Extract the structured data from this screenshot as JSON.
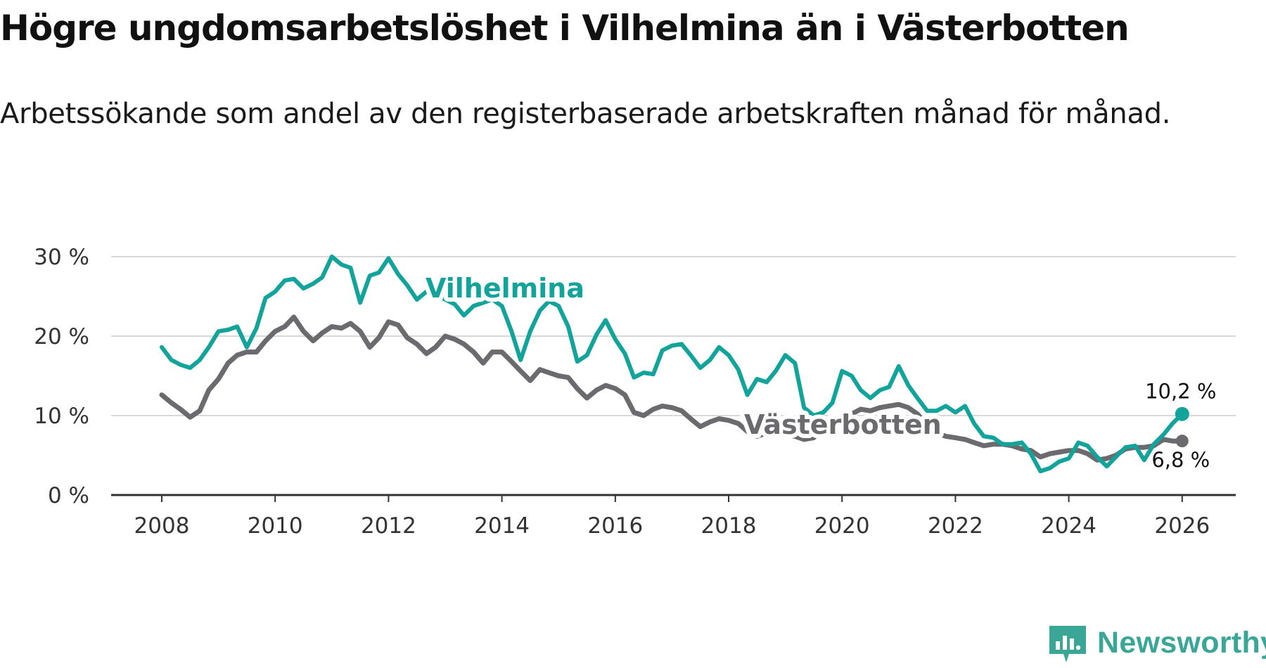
{
  "title": "Högre ungdomsarbetslöshet i Vilhelmina än i Västerbotten",
  "subtitle": "Arbetssökande som andel av den registerbaserade arbetskraften månad för månad.",
  "colors": {
    "vilhelmina": "#12a39a",
    "vasterbotten": "#6b6a6e",
    "grid": "#d9d9d9",
    "axis": "#333333"
  },
  "logo": {
    "name": "newsworthy-logo",
    "text": "Newsworthy"
  },
  "chart_data": {
    "type": "line",
    "title": "Högre ungdomsarbetslöshet i Vilhelmina än i Västerbotten",
    "xlabel": "",
    "ylabel": "",
    "xlim": [
      2007.5,
      2026.9
    ],
    "ylim": [
      0,
      30
    ],
    "grid": true,
    "legend": "inline labels",
    "y_ticks": [
      0,
      10,
      20,
      30
    ],
    "y_tick_labels": [
      "0 %",
      "10 %",
      "20 %",
      "30 %"
    ],
    "x_ticks": [
      2008,
      2010,
      2012,
      2014,
      2016,
      2018,
      2020,
      2022,
      2024,
      2026
    ],
    "x_tick_labels": [
      "2008",
      "2010",
      "2012",
      "2014",
      "2016",
      "2018",
      "2020",
      "2022",
      "2024",
      "2026"
    ],
    "series": [
      {
        "name": "Västerbotten",
        "label": "Västerbotten",
        "end_label": "6,8 %",
        "x": [
          2008.0,
          2008.17,
          2008.33,
          2008.5,
          2008.67,
          2008.83,
          2009.0,
          2009.17,
          2009.33,
          2009.5,
          2009.67,
          2009.83,
          2010.0,
          2010.17,
          2010.33,
          2010.5,
          2010.67,
          2010.83,
          2011.0,
          2011.17,
          2011.33,
          2011.5,
          2011.67,
          2011.83,
          2012.0,
          2012.17,
          2012.33,
          2012.5,
          2012.67,
          2012.83,
          2013.0,
          2013.17,
          2013.33,
          2013.5,
          2013.67,
          2013.83,
          2014.0,
          2014.17,
          2014.33,
          2014.5,
          2014.67,
          2014.83,
          2015.0,
          2015.17,
          2015.33,
          2015.5,
          2015.67,
          2015.83,
          2016.0,
          2016.17,
          2016.33,
          2016.5,
          2016.67,
          2016.83,
          2017.0,
          2017.17,
          2017.33,
          2017.5,
          2017.67,
          2017.83,
          2018.0,
          2018.17,
          2018.33,
          2018.5,
          2018.67,
          2018.83,
          2019.0,
          2019.17,
          2019.33,
          2019.5,
          2019.67,
          2019.83,
          2020.0,
          2020.17,
          2020.33,
          2020.5,
          2020.67,
          2020.83,
          2021.0,
          2021.17,
          2021.33,
          2021.5,
          2021.67,
          2021.83,
          2022.0,
          2022.17,
          2022.33,
          2022.5,
          2022.67,
          2022.83,
          2023.0,
          2023.17,
          2023.33,
          2023.5,
          2023.67,
          2023.83,
          2024.0,
          2024.17,
          2024.33,
          2024.5,
          2024.67,
          2024.83,
          2025.0,
          2025.17,
          2025.33,
          2025.5,
          2025.67,
          2025.83,
          2026.0
        ],
        "values": [
          12.6,
          11.6,
          10.8,
          9.8,
          10.6,
          13.2,
          14.6,
          16.6,
          17.6,
          18.0,
          18.0,
          19.4,
          20.6,
          21.2,
          22.4,
          20.6,
          19.4,
          20.4,
          21.2,
          21.0,
          21.6,
          20.6,
          18.6,
          19.8,
          21.8,
          21.4,
          19.8,
          19.0,
          17.8,
          18.6,
          20.0,
          19.6,
          19.0,
          18.0,
          16.6,
          18.0,
          18.0,
          16.8,
          15.6,
          14.4,
          15.8,
          15.4,
          15.0,
          14.8,
          13.4,
          12.2,
          13.2,
          13.8,
          13.4,
          12.6,
          10.4,
          10.0,
          10.8,
          11.2,
          11.0,
          10.6,
          9.6,
          8.6,
          9.2,
          9.6,
          9.4,
          9.0,
          8.0,
          7.4,
          7.8,
          7.8,
          7.6,
          7.4,
          7.0,
          7.2,
          8.6,
          9.2,
          9.8,
          10.2,
          10.8,
          10.6,
          11.0,
          11.2,
          11.4,
          11.0,
          10.2,
          8.8,
          7.8,
          7.4,
          7.2,
          7.0,
          6.6,
          6.2,
          6.4,
          6.4,
          6.2,
          5.8,
          5.6,
          4.8,
          5.2,
          5.4,
          5.6,
          5.6,
          5.2,
          4.4,
          4.6,
          5.0,
          5.8,
          6.0,
          6.0,
          6.2,
          7.0,
          6.8,
          6.8
        ]
      },
      {
        "name": "Vilhelmina",
        "label": "Vilhelmina",
        "end_label": "10,2 %",
        "x": [
          2008.0,
          2008.17,
          2008.33,
          2008.5,
          2008.67,
          2008.83,
          2009.0,
          2009.17,
          2009.33,
          2009.5,
          2009.67,
          2009.83,
          2010.0,
          2010.17,
          2010.33,
          2010.5,
          2010.67,
          2010.83,
          2011.0,
          2011.17,
          2011.33,
          2011.5,
          2011.67,
          2011.83,
          2012.0,
          2012.17,
          2012.33,
          2012.5,
          2012.67,
          2012.83,
          2013.0,
          2013.17,
          2013.33,
          2013.5,
          2013.67,
          2013.83,
          2014.0,
          2014.17,
          2014.33,
          2014.5,
          2014.67,
          2014.83,
          2015.0,
          2015.17,
          2015.33,
          2015.5,
          2015.67,
          2015.83,
          2016.0,
          2016.17,
          2016.33,
          2016.5,
          2016.67,
          2016.83,
          2017.0,
          2017.17,
          2017.33,
          2017.5,
          2017.67,
          2017.83,
          2018.0,
          2018.17,
          2018.33,
          2018.5,
          2018.67,
          2018.83,
          2019.0,
          2019.17,
          2019.33,
          2019.5,
          2019.67,
          2019.83,
          2020.0,
          2020.17,
          2020.33,
          2020.5,
          2020.67,
          2020.83,
          2021.0,
          2021.17,
          2021.33,
          2021.5,
          2021.67,
          2021.83,
          2022.0,
          2022.17,
          2022.33,
          2022.5,
          2022.67,
          2022.83,
          2023.0,
          2023.17,
          2023.33,
          2023.5,
          2023.67,
          2023.83,
          2024.0,
          2024.17,
          2024.33,
          2024.5,
          2024.67,
          2024.83,
          2025.0,
          2025.17,
          2025.33,
          2025.5,
          2025.67,
          2025.83,
          2026.0
        ],
        "values": [
          18.6,
          17.0,
          16.4,
          16.0,
          17.0,
          18.6,
          20.6,
          20.8,
          21.2,
          18.6,
          21.0,
          24.8,
          25.6,
          27.0,
          27.2,
          26.0,
          26.6,
          27.4,
          30.0,
          29.0,
          28.6,
          24.2,
          27.6,
          28.0,
          29.8,
          27.8,
          26.4,
          24.6,
          25.6,
          25.2,
          24.6,
          24.0,
          22.6,
          23.8,
          24.2,
          24.6,
          23.8,
          20.6,
          17.0,
          20.6,
          23.2,
          24.4,
          23.8,
          21.2,
          16.8,
          17.6,
          20.2,
          22.0,
          19.6,
          17.8,
          14.8,
          15.4,
          15.2,
          18.2,
          18.8,
          19.0,
          17.6,
          16.0,
          17.0,
          18.6,
          17.6,
          15.8,
          12.6,
          14.6,
          14.2,
          15.6,
          17.6,
          16.6,
          11.0,
          10.0,
          10.4,
          11.6,
          15.6,
          15.0,
          13.2,
          12.2,
          13.2,
          13.6,
          16.2,
          13.8,
          12.2,
          10.6,
          10.6,
          11.2,
          10.4,
          11.2,
          9.0,
          7.4,
          7.2,
          6.4,
          6.4,
          6.6,
          5.2,
          3.0,
          3.4,
          4.2,
          4.6,
          6.6,
          6.2,
          4.8,
          3.6,
          4.8,
          6.0,
          6.2,
          4.4,
          6.4,
          7.6,
          9.0,
          10.2
        ]
      }
    ]
  }
}
